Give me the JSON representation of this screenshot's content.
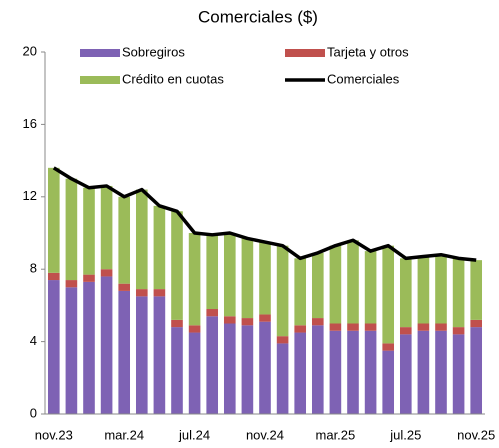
{
  "chart_data": {
    "type": "bar",
    "stacked": true,
    "title": "Comerciales ($)",
    "categories": [
      "nov.23",
      null,
      null,
      null,
      "mar.24",
      null,
      null,
      null,
      "jul.24",
      null,
      null,
      null,
      "nov.24",
      null,
      null,
      null,
      "mar.25",
      null,
      null,
      null,
      "jul.25",
      null,
      null,
      null,
      "nov.25"
    ],
    "series": [
      {
        "name": "Sobregiros",
        "color": "#7e62b4",
        "values": [
          7.4,
          7.0,
          7.3,
          7.6,
          6.8,
          6.5,
          6.5,
          4.8,
          4.5,
          5.4,
          5.0,
          4.9,
          5.1,
          3.9,
          4.5,
          4.9,
          4.6,
          4.6,
          4.6,
          3.5,
          4.4,
          4.6,
          4.6,
          4.4,
          4.8
        ]
      },
      {
        "name": "Tarjeta y otros",
        "color": "#c0504d",
        "values": [
          0.4,
          0.4,
          0.4,
          0.4,
          0.4,
          0.4,
          0.4,
          0.4,
          0.4,
          0.4,
          0.4,
          0.4,
          0.4,
          0.4,
          0.4,
          0.4,
          0.4,
          0.4,
          0.4,
          0.4,
          0.4,
          0.4,
          0.4,
          0.4,
          0.4
        ]
      },
      {
        "name": "Crédito en cuotas",
        "color": "#9bbb59",
        "values": [
          5.8,
          5.6,
          4.8,
          4.6,
          4.8,
          5.5,
          4.6,
          6.0,
          5.1,
          4.1,
          4.6,
          4.4,
          4.0,
          5.0,
          3.7,
          3.6,
          4.3,
          4.6,
          4.0,
          5.4,
          3.8,
          3.7,
          3.8,
          3.8,
          3.3
        ]
      },
      {
        "name": "Comerciales",
        "color": "#000000",
        "type": "line",
        "values": [
          13.6,
          13.0,
          12.5,
          12.6,
          12.0,
          12.4,
          11.5,
          11.2,
          10.0,
          9.9,
          10.0,
          9.7,
          9.5,
          9.3,
          8.6,
          8.9,
          9.3,
          9.6,
          9.0,
          9.3,
          8.6,
          8.7,
          8.8,
          8.6,
          8.5
        ]
      }
    ],
    "ylim": [
      0,
      20
    ],
    "yticks": [
      0,
      4,
      8,
      12,
      16,
      20
    ]
  }
}
